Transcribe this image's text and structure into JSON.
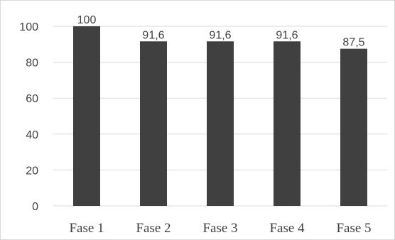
{
  "chart_data": {
    "type": "bar",
    "categories": [
      "Fase 1",
      "Fase 2",
      "Fase 3",
      "Fase 4",
      "Fase 5"
    ],
    "values": [
      100,
      91.6,
      91.6,
      91.6,
      87.5
    ],
    "data_labels": [
      "100",
      "91,6",
      "91,6",
      "91,6",
      "87,5"
    ],
    "yticks": [
      "0",
      "20",
      "40",
      "60",
      "80",
      "100"
    ],
    "ylim": [
      0,
      100
    ],
    "grid": true,
    "bar_color": "#404040",
    "grid_color": "#d9d9d9"
  }
}
